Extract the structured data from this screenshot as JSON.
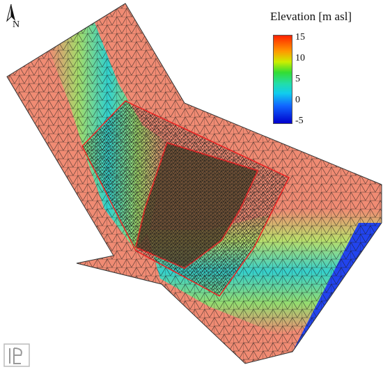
{
  "legend": {
    "title": "Elevation [m asl]",
    "ticks": [
      "15",
      "10",
      "5",
      "0",
      "-5"
    ],
    "range": [
      -5,
      15
    ]
  },
  "north_label": "N",
  "colors": {
    "high": "#f08b73",
    "channel": "#28d6c8",
    "mid": "#7ddc6a",
    "pit": "#5e4a2e",
    "outline": "#ee2222",
    "mesh": "#222222"
  },
  "icons": [
    "north-arrow-icon",
    "logo-icon"
  ]
}
